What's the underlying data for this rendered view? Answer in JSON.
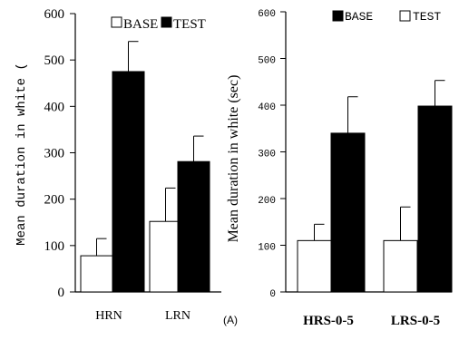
{
  "colors": {
    "base_fill": "#ffffff",
    "test_fill": "#000000",
    "axis": "#000000"
  },
  "chart_data": [
    {
      "type": "bar",
      "ylabel": "Mean duration in white (",
      "ylim": [
        0,
        600
      ],
      "yticks": [
        "0",
        "100",
        "200",
        "300",
        "400",
        "500",
        "600"
      ],
      "categories": [
        "HRN",
        "LRN"
      ],
      "series": [
        {
          "name": "BASE",
          "values": [
            78,
            152
          ],
          "errors": [
            37,
            72
          ]
        },
        {
          "name": "TEST",
          "values": [
            475,
            281
          ],
          "errors": [
            65,
            55
          ]
        }
      ],
      "legend": [
        "BASE",
        "TEST"
      ],
      "legend_position": "top",
      "grid": false
    },
    {
      "type": "bar",
      "ylabel": "Mean duration in white (sec)",
      "ylim": [
        0,
        600
      ],
      "yticks": [
        "0",
        "100",
        "200",
        "300",
        "400",
        "500",
        "600"
      ],
      "categories": [
        "HRS-0-5",
        "LRS-0-5"
      ],
      "series": [
        {
          "name": "TEST",
          "values": [
            110,
            110
          ],
          "errors": [
            35,
            72
          ]
        },
        {
          "name": "BASE",
          "values": [
            340,
            398
          ],
          "errors": [
            78,
            55
          ]
        }
      ],
      "legend": [
        "BASE",
        "TEST"
      ],
      "legend_position": "top",
      "grid": false
    }
  ],
  "panel_label": "(A)"
}
